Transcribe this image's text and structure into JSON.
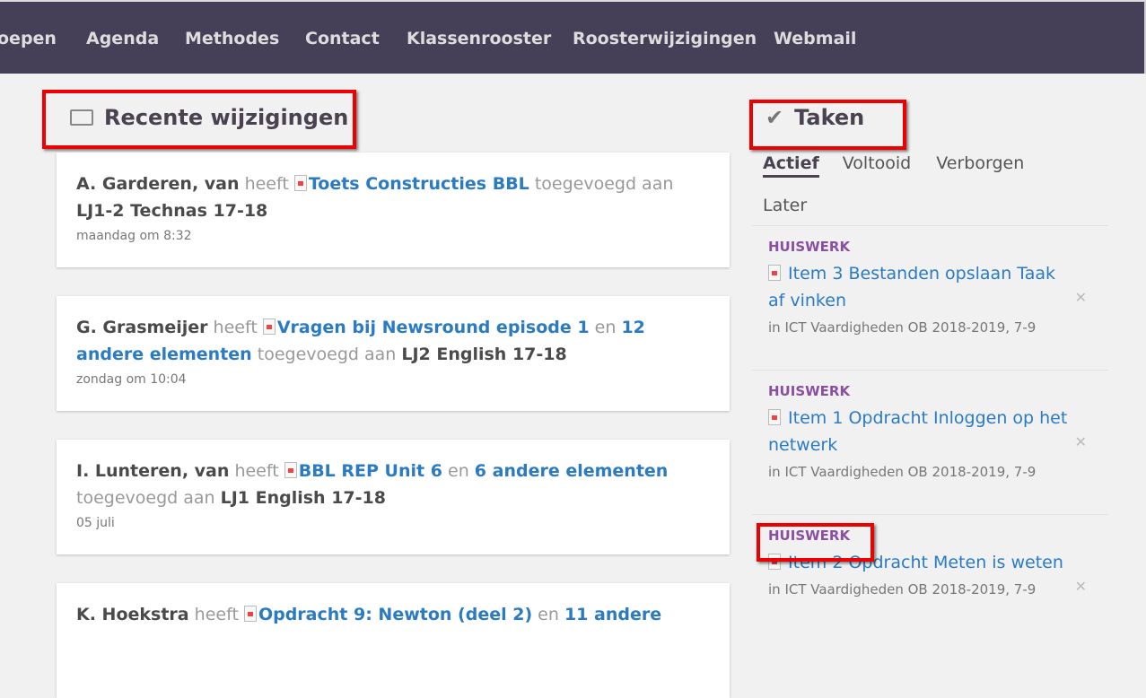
{
  "nav": [
    "oepen",
    "Agenda",
    "Methodes",
    "Contact",
    "Klassenrooster",
    "Roosterwijzigingen",
    "Webmail"
  ],
  "recent": {
    "title": "Recente wijzigingen",
    "items": [
      {
        "author": "A. Garderen, van",
        "verb": "heeft",
        "link": "Toets Constructies BBL",
        "more": "",
        "rest": "toegevoegd aan",
        "target": "LJ1-2 Technas 17-18",
        "time": "maandag om 8:32"
      },
      {
        "author": "G. Grasmeijer",
        "verb": "heeft",
        "link": "Vragen bij Newsround episode 1",
        "en": "en",
        "more": "12 andere elementen",
        "rest": "toegevoegd aan",
        "target": "LJ2 English 17-18",
        "time": "zondag om 10:04"
      },
      {
        "author": "I. Lunteren, van",
        "verb": "heeft",
        "link": "BBL REP Unit 6",
        "en": "en",
        "more": "6 andere elementen",
        "rest": "toegevoegd aan",
        "target": "LJ1 English 17-18",
        "time": "05 juli"
      },
      {
        "author": "K. Hoekstra",
        "verb": "heeft",
        "link": "Opdracht 9: Newton (deel 2)",
        "en": "en",
        "more": "11 andere",
        "rest": "",
        "target": "",
        "time": ""
      }
    ]
  },
  "tasks": {
    "title": "Taken",
    "tabs": [
      "Actief",
      "Voltooid",
      "Verborgen",
      "Later"
    ],
    "items": [
      {
        "kind": "HUISWERK",
        "title": "Item 3 Bestanden opslaan Taak af vinken",
        "context": "in ICT Vaardigheden OB 2018-2019,  7-9"
      },
      {
        "kind": "HUISWERK",
        "title": "Item 1 Opdracht Inloggen op het netwerk",
        "context": "in ICT Vaardigheden OB 2018-2019,  7-9"
      },
      {
        "kind": "HUISWERK",
        "title": "Item 2 Opdracht Meten is weten",
        "context": "in ICT Vaardigheden OB 2018-2019,  7-9"
      }
    ]
  },
  "colors": {
    "nav": "#463f58",
    "link": "#2a7bc4",
    "kind": "#8a4fa0",
    "highlight": "#ee0000"
  }
}
